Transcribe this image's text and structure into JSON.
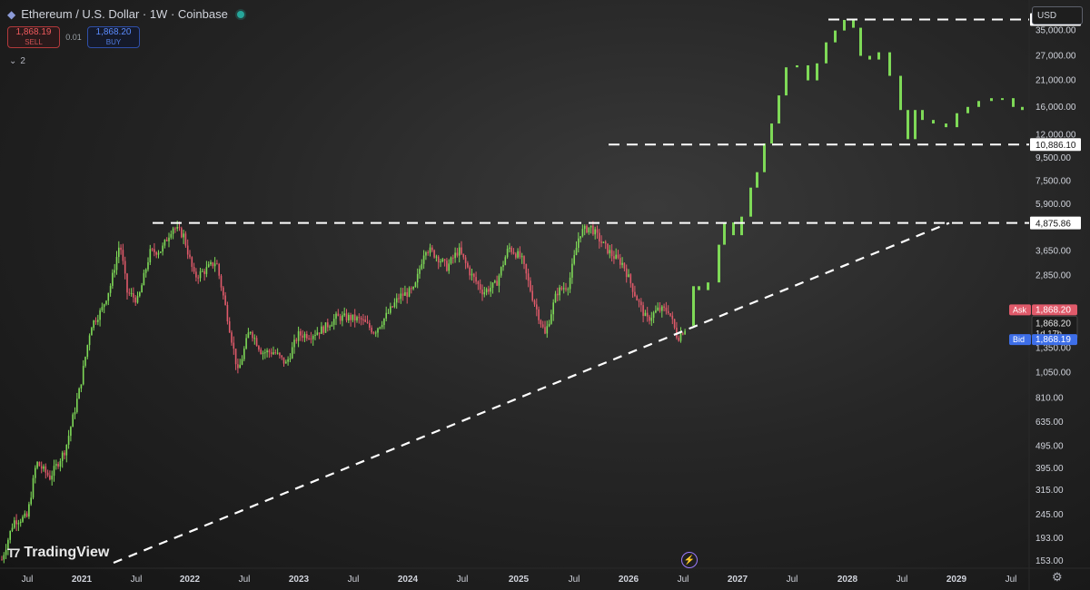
{
  "header": {
    "icon": "ethereum-icon",
    "title": "Ethereum / U.S. Dollar · 1W · Coinbase",
    "status_color": "#26a69a"
  },
  "trade": {
    "sell_price": "1,868.19",
    "sell_label": "SELL",
    "spread": "0.01",
    "buy_price": "1,868.20",
    "buy_label": "BUY"
  },
  "indicators_label": "2",
  "currency": "USD",
  "watermark": "TradingView",
  "chart_data": {
    "type": "candlestick",
    "y_scale": "log",
    "ylim": [
      150,
      42000
    ],
    "colors": {
      "up": "#7ed957",
      "down": "#e05a6a",
      "levels": "#ffffff"
    },
    "y_ticks": [
      {
        "label": "35,000.00",
        "value": 35000
      },
      {
        "label": "27,000.00",
        "value": 27000
      },
      {
        "label": "21,000.00",
        "value": 21000
      },
      {
        "label": "16,000.00",
        "value": 16000
      },
      {
        "label": "12,000.00",
        "value": 12000
      },
      {
        "label": "9,500.00",
        "value": 9500
      },
      {
        "label": "7,500.00",
        "value": 7500
      },
      {
        "label": "5,900.00",
        "value": 5900
      },
      {
        "label": "3,650.00",
        "value": 3650
      },
      {
        "label": "2,850.00",
        "value": 2850
      },
      {
        "label": "1,350.00",
        "value": 1350
      },
      {
        "label": "1,050.00",
        "value": 1050
      },
      {
        "label": "810.00",
        "value": 810
      },
      {
        "label": "635.00",
        "value": 635
      },
      {
        "label": "495.00",
        "value": 495
      },
      {
        "label": "395.00",
        "value": 395
      },
      {
        "label": "315.00",
        "value": 315
      },
      {
        "label": "245.00",
        "value": 245
      },
      {
        "label": "193.00",
        "value": 193
      },
      {
        "label": "153.00",
        "value": 153
      }
    ],
    "price_badges": [
      {
        "label": "39,189.30",
        "value": 39189.3,
        "style": "white"
      },
      {
        "label": "10,886.10",
        "value": 10886.1,
        "style": "white"
      },
      {
        "label": "4,875.86",
        "value": 4875.86,
        "style": "white"
      },
      {
        "label": "1,868.20",
        "value": 2000,
        "style": "ask",
        "tag": "Ask"
      },
      {
        "label": "1,868.20",
        "value": 1740,
        "style": "current",
        "extra": "1d 17h"
      },
      {
        "label": "1,868.19",
        "value": 1475,
        "style": "bid",
        "tag": "Bid"
      }
    ],
    "x_labels": [
      {
        "label": "Jul",
        "x": 30,
        "bold": false
      },
      {
        "label": "2021",
        "x": 90,
        "bold": true
      },
      {
        "label": "Jul",
        "x": 150,
        "bold": false
      },
      {
        "label": "2022",
        "x": 209,
        "bold": true
      },
      {
        "label": "Jul",
        "x": 269,
        "bold": false
      },
      {
        "label": "2023",
        "x": 329,
        "bold": true
      },
      {
        "label": "Jul",
        "x": 389,
        "bold": false
      },
      {
        "label": "2024",
        "x": 449,
        "bold": true
      },
      {
        "label": "Jul",
        "x": 509,
        "bold": false
      },
      {
        "label": "2025",
        "x": 571,
        "bold": true
      },
      {
        "label": "Jul",
        "x": 632,
        "bold": false
      },
      {
        "label": "2026",
        "x": 692,
        "bold": true
      },
      {
        "label": "Jul",
        "x": 752,
        "bold": false
      },
      {
        "label": "2027",
        "x": 812,
        "bold": true
      },
      {
        "label": "Jul",
        "x": 872,
        "bold": false
      },
      {
        "label": "2028",
        "x": 933,
        "bold": true
      },
      {
        "label": "Jul",
        "x": 993,
        "bold": false
      },
      {
        "label": "2029",
        "x": 1053,
        "bold": true
      },
      {
        "label": "Jul",
        "x": 1113,
        "bold": false
      }
    ],
    "levels": [
      {
        "value": 39189.3,
        "x_start": 912
      },
      {
        "value": 10886.1,
        "x_start": 670
      },
      {
        "value": 4875.86,
        "x_start": 168
      }
    ],
    "trendline": {
      "from": {
        "x": 125,
        "value": 150
      },
      "to": {
        "x": 1045,
        "value": 4875.86
      }
    },
    "history_path": [
      {
        "x": 2,
        "v": 155
      },
      {
        "x": 15,
        "v": 230
      },
      {
        "x": 30,
        "v": 240
      },
      {
        "x": 40,
        "v": 420
      },
      {
        "x": 55,
        "v": 360
      },
      {
        "x": 72,
        "v": 480
      },
      {
        "x": 88,
        "v": 900
      },
      {
        "x": 100,
        "v": 1700
      },
      {
        "x": 112,
        "v": 2000
      },
      {
        "x": 122,
        "v": 2600
      },
      {
        "x": 132,
        "v": 4000
      },
      {
        "x": 140,
        "v": 2400
      },
      {
        "x": 152,
        "v": 2200
      },
      {
        "x": 165,
        "v": 3600
      },
      {
        "x": 178,
        "v": 3700
      },
      {
        "x": 190,
        "v": 4700
      },
      {
        "x": 202,
        "v": 4300
      },
      {
        "x": 214,
        "v": 2800
      },
      {
        "x": 226,
        "v": 3000
      },
      {
        "x": 238,
        "v": 3300
      },
      {
        "x": 250,
        "v": 1900
      },
      {
        "x": 262,
        "v": 1050
      },
      {
        "x": 275,
        "v": 1650
      },
      {
        "x": 288,
        "v": 1300
      },
      {
        "x": 302,
        "v": 1300
      },
      {
        "x": 315,
        "v": 1150
      },
      {
        "x": 328,
        "v": 1550
      },
      {
        "x": 342,
        "v": 1550
      },
      {
        "x": 356,
        "v": 1650
      },
      {
        "x": 370,
        "v": 1850
      },
      {
        "x": 384,
        "v": 1850
      },
      {
        "x": 398,
        "v": 1800
      },
      {
        "x": 412,
        "v": 1600
      },
      {
        "x": 426,
        "v": 1900
      },
      {
        "x": 440,
        "v": 2300
      },
      {
        "x": 456,
        "v": 2450
      },
      {
        "x": 468,
        "v": 3800
      },
      {
        "x": 480,
        "v": 3500
      },
      {
        "x": 492,
        "v": 3100
      },
      {
        "x": 505,
        "v": 3700
      },
      {
        "x": 518,
        "v": 2900
      },
      {
        "x": 532,
        "v": 2400
      },
      {
        "x": 546,
        "v": 2600
      },
      {
        "x": 560,
        "v": 3800
      },
      {
        "x": 574,
        "v": 3400
      },
      {
        "x": 586,
        "v": 2300
      },
      {
        "x": 600,
        "v": 1550
      },
      {
        "x": 613,
        "v": 2400
      },
      {
        "x": 626,
        "v": 2600
      },
      {
        "x": 638,
        "v": 4400
      },
      {
        "x": 650,
        "v": 4700
      },
      {
        "x": 662,
        "v": 4000
      },
      {
        "x": 674,
        "v": 3500
      },
      {
        "x": 686,
        "v": 3200
      },
      {
        "x": 700,
        "v": 2300
      },
      {
        "x": 712,
        "v": 1800
      },
      {
        "x": 724,
        "v": 2000
      },
      {
        "x": 736,
        "v": 2000
      },
      {
        "x": 746,
        "v": 1500
      },
      {
        "x": 756,
        "v": 1700
      }
    ],
    "forecast_path": [
      {
        "x": 762,
        "v": 1700
      },
      {
        "x": 768,
        "v": 2550
      },
      {
        "x": 778,
        "v": 2450
      },
      {
        "x": 790,
        "v": 2650
      },
      {
        "x": 796,
        "v": 3900
      },
      {
        "x": 806,
        "v": 4900
      },
      {
        "x": 815,
        "v": 4300
      },
      {
        "x": 825,
        "v": 5200
      },
      {
        "x": 832,
        "v": 7000
      },
      {
        "x": 840,
        "v": 8200
      },
      {
        "x": 848,
        "v": 11000
      },
      {
        "x": 856,
        "v": 13500
      },
      {
        "x": 864,
        "v": 18000
      },
      {
        "x": 876,
        "v": 24000
      },
      {
        "x": 888,
        "v": 24500
      },
      {
        "x": 898,
        "v": 21000
      },
      {
        "x": 908,
        "v": 25000
      },
      {
        "x": 918,
        "v": 31000
      },
      {
        "x": 928,
        "v": 35000
      },
      {
        "x": 938,
        "v": 39000
      },
      {
        "x": 946,
        "v": 36000
      },
      {
        "x": 956,
        "v": 27000
      },
      {
        "x": 966,
        "v": 26000
      },
      {
        "x": 978,
        "v": 28000
      },
      {
        "x": 990,
        "v": 22000
      },
      {
        "x": 998,
        "v": 15500
      },
      {
        "x": 1006,
        "v": 11500
      },
      {
        "x": 1014,
        "v": 15500
      },
      {
        "x": 1026,
        "v": 14000
      },
      {
        "x": 1040,
        "v": 13500
      },
      {
        "x": 1052,
        "v": 13000
      },
      {
        "x": 1064,
        "v": 15000
      },
      {
        "x": 1076,
        "v": 16000
      },
      {
        "x": 1090,
        "v": 17000
      },
      {
        "x": 1102,
        "v": 17500
      },
      {
        "x": 1114,
        "v": 17500
      },
      {
        "x": 1124,
        "v": 16000
      },
      {
        "x": 1132,
        "v": 15500
      }
    ]
  }
}
